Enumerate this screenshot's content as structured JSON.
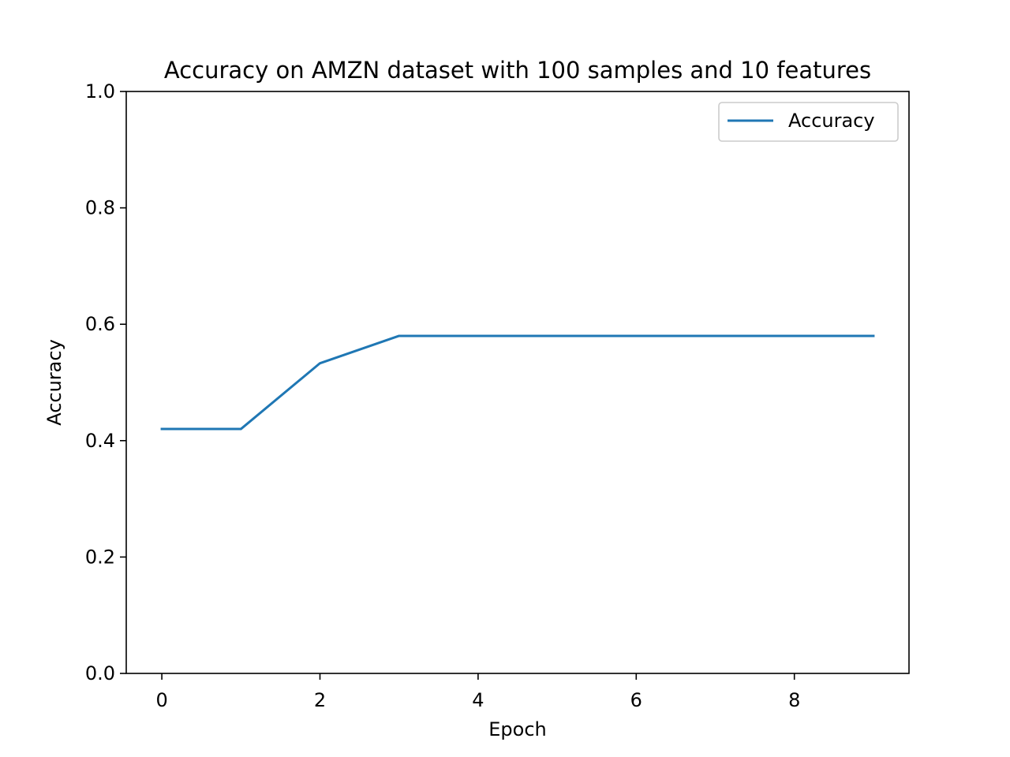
{
  "chart_data": {
    "type": "line",
    "title": "Accuracy on AMZN dataset with 100 samples and 10 features",
    "xlabel": "Epoch",
    "ylabel": "Accuracy",
    "xlim": [
      -0.45,
      9.45
    ],
    "ylim": [
      0.0,
      1.0
    ],
    "xticks": [
      0,
      2,
      4,
      6,
      8
    ],
    "xtick_labels": [
      "0",
      "2",
      "4",
      "6",
      "8"
    ],
    "yticks": [
      0.0,
      0.2,
      0.4,
      0.6,
      0.8,
      1.0
    ],
    "ytick_labels": [
      "0.0",
      "0.2",
      "0.4",
      "0.6",
      "0.8",
      "1.0"
    ],
    "grid": false,
    "legend_position": "top-right",
    "series": [
      {
        "name": "Accuracy",
        "color": "#1f77b4",
        "x": [
          0,
          1,
          2,
          3,
          4,
          5,
          6,
          7,
          8,
          9
        ],
        "y": [
          0.42,
          0.42,
          0.533,
          0.58,
          0.58,
          0.58,
          0.58,
          0.58,
          0.58,
          0.58
        ]
      }
    ]
  }
}
